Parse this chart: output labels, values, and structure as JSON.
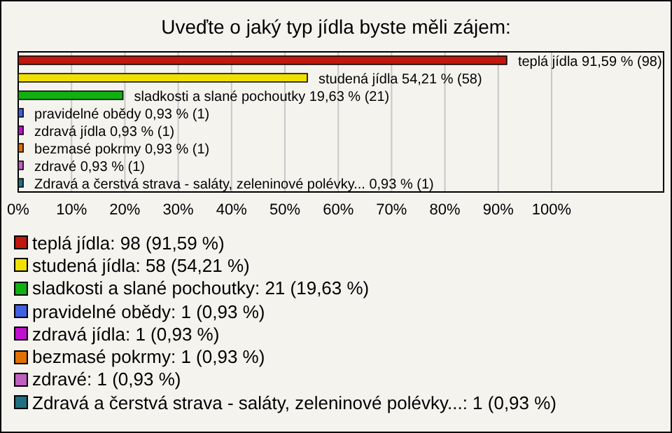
{
  "chart_data": {
    "type": "bar",
    "orientation": "horizontal",
    "title": "Uveďte o jaký typ jídla byste měli zájem:",
    "categories": [
      null,
      null,
      null,
      null,
      null,
      null,
      null,
      null
    ],
    "values": [
      91.59,
      54.21,
      19.63,
      0.93,
      0.93,
      0.93,
      0.93,
      0.93
    ],
    "colors": [
      "#c0180c",
      "#f0e000",
      "#10b010",
      "#4060e0",
      "#c010d0",
      "#e07000",
      "#c060c0",
      "#207080"
    ],
    "value_labels": [
      "teplá jídla 91,59 % (98)",
      "studená jídla 54,21 % (58)",
      "sladkosti a slané pochoutky 19,63 % (21)",
      "pravidelné obědy 0,93 % (1)",
      "zdravá jídla 0,93 % (1)",
      "bezmasé pokrmy 0,93 % (1)",
      "zdravé 0,93 % (1)",
      "Zdravá a čerstvá strava - saláty, zeleninové polévky... 0,93 % (1)"
    ],
    "annotations": [
      "teplá jídla: 98 (91,59 %)",
      "studená jídla: 58 (54,21 %)",
      "sladkosti a slané pochoutky: 21 (19,63 %)",
      "pravidelné obědy: 1 (0,93 %)",
      "zdravá jídla: 1 (0,93 %)",
      "bezmasé pokrmy: 1 (0,93 %)",
      "zdravé: 1 (0,93 %)",
      "Zdravá a čerstvá strava - saláty, zeleninové polévky...: 1 (0,93 %)"
    ],
    "xlim": [
      0,
      121
    ],
    "xticks": [
      {
        "value": 0,
        "label": "0%"
      },
      {
        "value": 10,
        "label": "10%"
      },
      {
        "value": 20,
        "label": "20%"
      },
      {
        "value": 30,
        "label": "30%"
      },
      {
        "value": 40,
        "label": "40%"
      },
      {
        "value": 50,
        "label": "50%"
      },
      {
        "value": 60,
        "label": "60%"
      },
      {
        "value": 70,
        "label": "70%"
      },
      {
        "value": 80,
        "label": "80%"
      },
      {
        "value": 90,
        "label": "90%"
      },
      {
        "value": 100,
        "label": "100%"
      }
    ],
    "tick_labels": "x",
    "grid": "x"
  }
}
